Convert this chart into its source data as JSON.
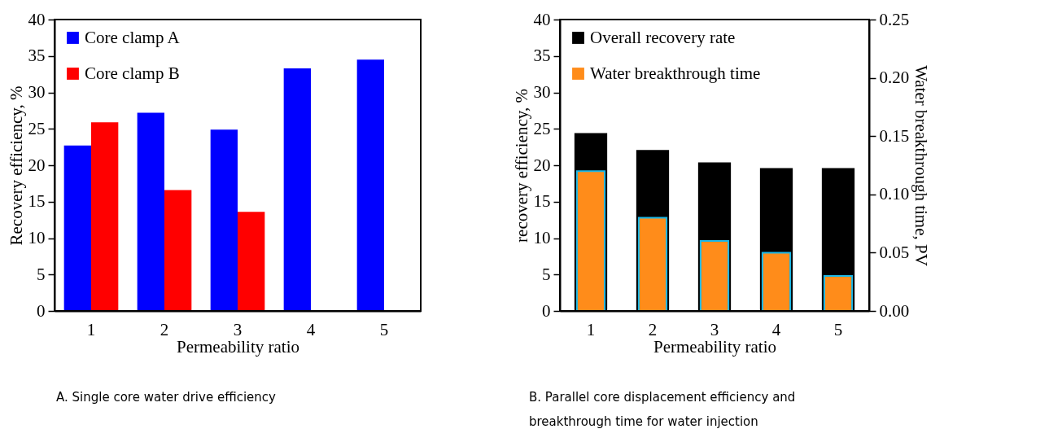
{
  "chart_data": [
    {
      "type": "bar",
      "categories": [
        "1",
        "2",
        "3",
        "4",
        "5"
      ],
      "xlabel": "Permeability ratio",
      "ylabel": "Recovery efficiency, %",
      "ylim": [
        0,
        40
      ],
      "yticks": [
        0,
        5,
        10,
        15,
        20,
        25,
        30,
        35,
        40
      ],
      "legend": "top left",
      "grid": false,
      "series": [
        {
          "name": "Core clamp A",
          "color": "#0000ff",
          "values": [
            22.7,
            27.2,
            24.9,
            33.3,
            34.5
          ]
        },
        {
          "name": "Core clamp B",
          "color": "#ff0000",
          "values": [
            25.9,
            16.6,
            13.6,
            null,
            null
          ]
        }
      ],
      "annotations": [
        "A. Single core water drive efficiency"
      ]
    },
    {
      "type": "bar",
      "categories": [
        "1",
        "2",
        "3",
        "4",
        "5"
      ],
      "xlabel": "Permeability ratio",
      "ylabel": "recovery efficiency, %",
      "y2label": "Water breakthrough time, PV",
      "ylim": [
        0,
        40
      ],
      "yticks": [
        0,
        5,
        10,
        15,
        20,
        25,
        30,
        35,
        40
      ],
      "y2lim": [
        0,
        0.25
      ],
      "y2ticks": [
        {
          "value": 0,
          "label": "0.00"
        },
        {
          "value": 0.05,
          "label": "0.05"
        },
        {
          "value": 0.1,
          "label": "0.10"
        },
        {
          "value": 0.15,
          "label": "0.15"
        },
        {
          "value": 0.2,
          "label": "0.20"
        },
        {
          "value": 0.25,
          "label": "0.25"
        }
      ],
      "legend": "top left",
      "grid": false,
      "series": [
        {
          "name": "Overall recovery rate",
          "color": "#000000",
          "values": [
            24.4,
            22.1,
            20.4,
            19.6,
            19.6
          ]
        },
        {
          "name": "Water breakthrough time",
          "color": "#ff8c1a",
          "axis": "y2",
          "values": [
            0.12,
            0.08,
            0.06,
            0.05,
            0.03
          ]
        }
      ],
      "annotations": [
        "B. Parallel core displacement efficiency and breakthrough time for water injection"
      ]
    }
  ]
}
